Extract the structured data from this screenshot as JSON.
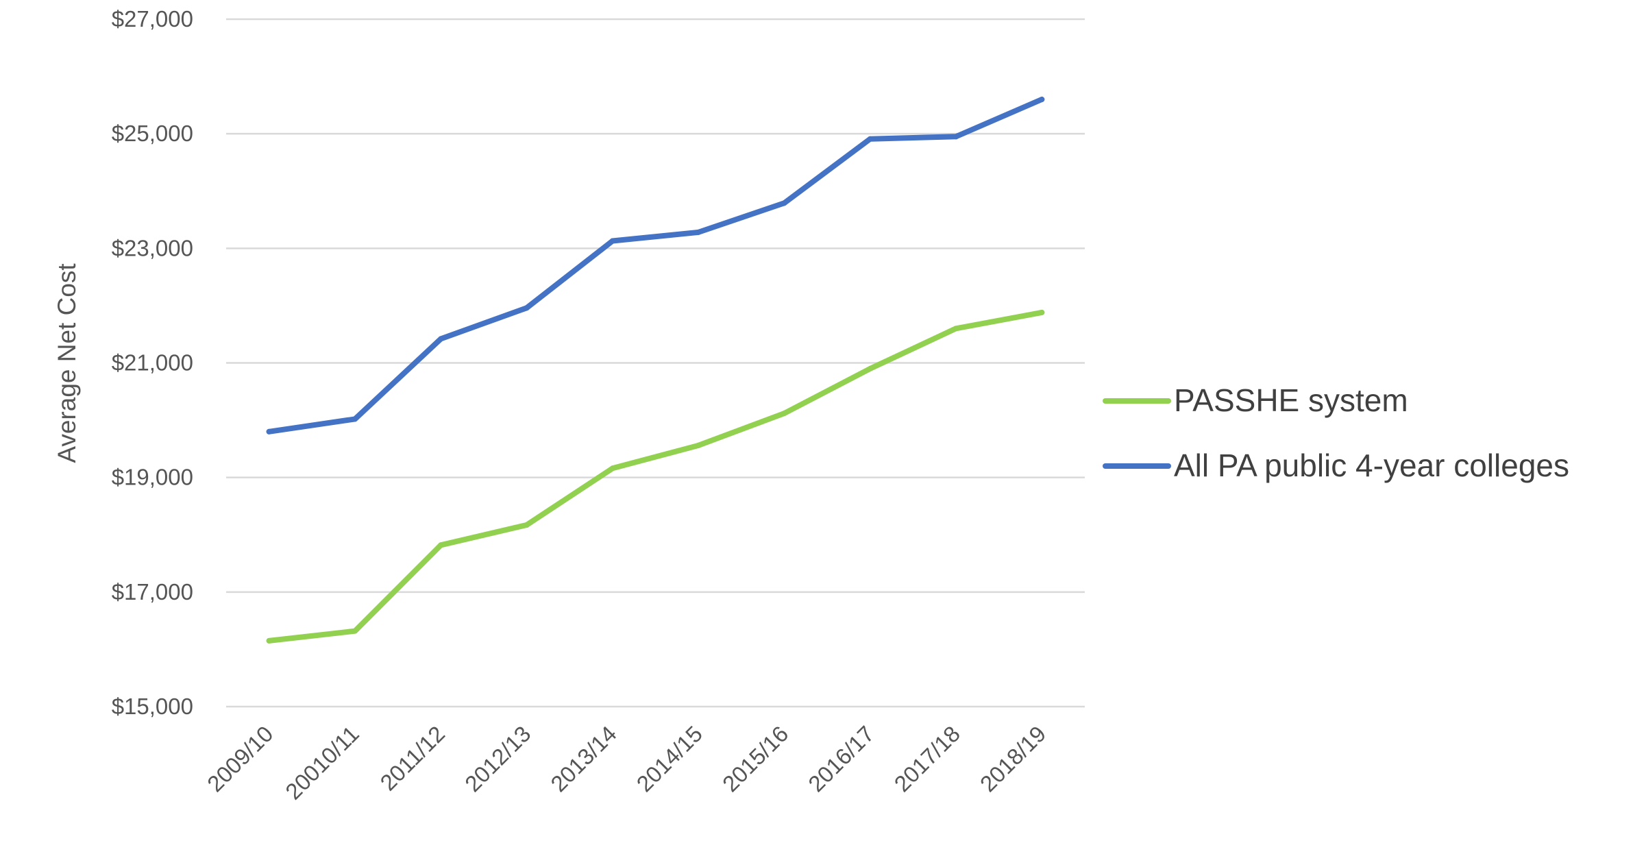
{
  "chart_data": {
    "type": "line",
    "title": "",
    "xlabel": "",
    "ylabel": "Average Net Cost",
    "categories": [
      "2009/10",
      "20010/11",
      "2011/12",
      "2012/13",
      "2013/14",
      "2014/15",
      "2015/16",
      "2016/17",
      "2017/18",
      "2018/19"
    ],
    "ylim": [
      15000,
      27000
    ],
    "yticks": [
      15000,
      17000,
      19000,
      21000,
      23000,
      25000,
      27000
    ],
    "ytick_labels": [
      "$15,000",
      "$17,000",
      "$19,000",
      "$21,000",
      "$23,000",
      "$25,000",
      "$27,000"
    ],
    "grid": true,
    "legend_position": "right",
    "series": [
      {
        "name": "PASSHE system",
        "color": "#92d050",
        "values": [
          16150,
          16320,
          17820,
          18170,
          19160,
          19560,
          20120,
          20900,
          21600,
          21880
        ]
      },
      {
        "name": "All PA public 4-year colleges",
        "color": "#4472c4",
        "values": [
          19800,
          20020,
          21420,
          21960,
          23130,
          23280,
          23790,
          24910,
          24950,
          25600
        ]
      }
    ]
  }
}
